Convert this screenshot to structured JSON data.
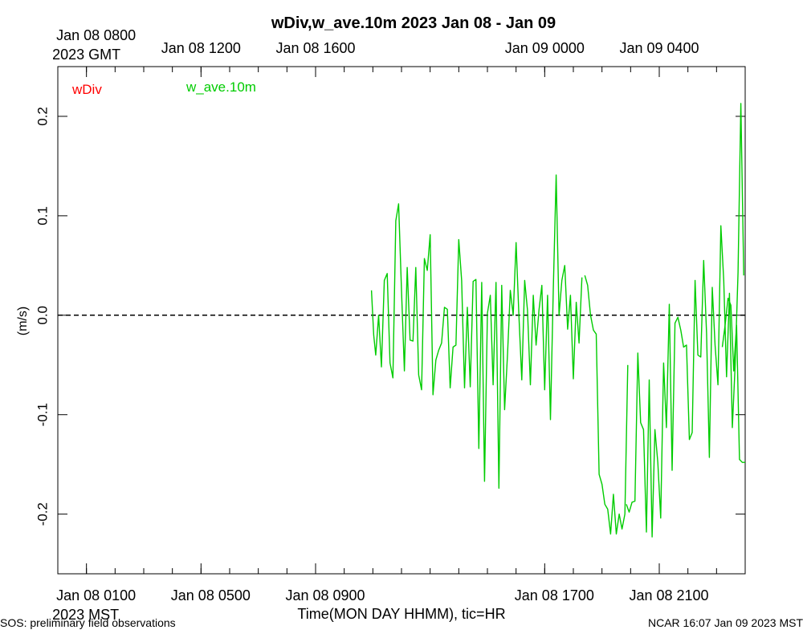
{
  "footer": {
    "left": "SOS: preliminary field observations",
    "right": "NCAR 16:07 Jan 09 2023 MST"
  },
  "colors": {
    "wDiv": "#ff0000",
    "w_ave": "#00cc00",
    "axis": "#000000"
  },
  "chart_data": {
    "type": "line",
    "title": "wDiv,w_ave.10m 2023 Jan 08 - Jan 09",
    "xlabel": "Time(MON DAY HHMM), tic=HR",
    "ylabel": "(m/s)",
    "x_unit": "hours since Jan 08 0000 MST",
    "xlim": [
      0,
      24
    ],
    "ylim": [
      -0.26,
      0.25
    ],
    "y_ticks": [
      -0.2,
      -0.1,
      0.0,
      0.1,
      0.2
    ],
    "y_tick_labels": [
      "-0.2",
      "-0.1",
      "0.0",
      "0.1",
      "0.2"
    ],
    "bottom_ticks": [
      {
        "x": 1,
        "label1": "Jan 08 0100",
        "label2": "2023 MST"
      },
      {
        "x": 5,
        "label1": "Jan 08 0500",
        "label2": ""
      },
      {
        "x": 9,
        "label1": "Jan 08 0900",
        "label2": ""
      },
      {
        "x": 17,
        "label1": "Jan 08 1700",
        "label2": ""
      },
      {
        "x": 21,
        "label1": "Jan 08 2100",
        "label2": ""
      }
    ],
    "top_ticks": [
      {
        "x": 1,
        "label1": "Jan 08 0800",
        "label2": "2023 GMT"
      },
      {
        "x": 5,
        "label1": "Jan 08 1200",
        "label2": ""
      },
      {
        "x": 9,
        "label1": "Jan 08 1600",
        "label2": ""
      },
      {
        "x": 17,
        "label1": "Jan 09 0000",
        "label2": ""
      },
      {
        "x": 21,
        "label1": "Jan 09 0400",
        "label2": ""
      }
    ],
    "series": [
      {
        "name": "wDiv",
        "color": "#ff0000",
        "style": "dashed",
        "x": [
          0,
          24
        ],
        "y": [
          0.0,
          0.0
        ]
      },
      {
        "name": "w_ave.10m",
        "color": "#00cc00",
        "style": "solid",
        "segments": [
          {
            "x": [
              10.95,
              11.03,
              11.1,
              11.2,
              11.3,
              11.4,
              11.5,
              11.6,
              11.7,
              11.8,
              11.9,
              12.0,
              12.1,
              12.2,
              12.3,
              12.4,
              12.5,
              12.6,
              12.7,
              12.8,
              12.9,
              13.0,
              13.1,
              13.2,
              13.3,
              13.4,
              13.5,
              13.6,
              13.7,
              13.8,
              13.9,
              14.0,
              14.1,
              14.2,
              14.3,
              14.4,
              14.5,
              14.6,
              14.7,
              14.8,
              14.9,
              15.0,
              15.1,
              15.2,
              15.3,
              15.4,
              15.5,
              15.6,
              15.7,
              15.8,
              15.9,
              16.0,
              16.1,
              16.2,
              16.3,
              16.4,
              16.5,
              16.6,
              16.7,
              16.8,
              16.9,
              17.0,
              17.1,
              17.2,
              17.3,
              17.4,
              17.5,
              17.6,
              17.7,
              17.8,
              17.9,
              18.0,
              18.1,
              18.2,
              18.3
            ],
            "y": [
              0.025,
              -0.02,
              -0.04,
              0.0,
              -0.052,
              0.035,
              0.042,
              -0.048,
              -0.063,
              0.095,
              0.112,
              0.025,
              -0.056,
              0.048,
              -0.025,
              -0.026,
              0.048,
              -0.06,
              -0.075,
              0.057,
              0.045,
              0.081,
              -0.08,
              -0.045,
              -0.035,
              -0.028,
              0.008,
              0.006,
              -0.073,
              -0.032,
              -0.03,
              0.076,
              0.035,
              -0.073,
              0.008,
              -0.072,
              0.034,
              0.036,
              -0.134,
              0.033,
              -0.167,
              0.002,
              0.02,
              -0.07,
              0.033,
              -0.174,
              0.03,
              -0.095,
              -0.04,
              0.025,
              0.0,
              0.073,
              0.0,
              -0.065,
              0.035,
              0.005,
              -0.07,
              0.02,
              -0.03,
              0.005,
              0.03,
              -0.075,
              0.02,
              -0.105,
              0.025,
              0.141,
              0.0,
              0.035,
              0.05,
              -0.014,
              0.02,
              -0.064,
              0.013,
              -0.028,
              0.038
            ]
          },
          {
            "x": [
              18.4,
              18.5,
              18.6,
              18.7,
              18.8,
              18.9,
              19.0,
              19.1,
              19.2,
              19.3,
              19.4,
              19.5,
              19.6,
              19.7,
              19.8,
              19.9
            ],
            "y": [
              0.04,
              0.03,
              0.0,
              -0.015,
              -0.019,
              -0.16,
              -0.17,
              -0.19,
              -0.195,
              -0.22,
              -0.18,
              -0.22,
              -0.2,
              -0.215,
              -0.2,
              -0.05
            ]
          },
          {
            "x": [
              19.85,
              19.95,
              20.05,
              20.15,
              20.25,
              20.35,
              20.45,
              20.55,
              20.65,
              20.75,
              20.85,
              20.95,
              21.05,
              21.15,
              21.25,
              21.35,
              21.45,
              21.55,
              21.65,
              21.75,
              21.85,
              21.95,
              22.05,
              22.15,
              22.25,
              22.35,
              22.45,
              22.55,
              22.65,
              22.75,
              22.85,
              22.95,
              23.05,
              23.15,
              23.25,
              23.35,
              23.45,
              23.55,
              23.65,
              23.75,
              23.85,
              23.95
            ],
            "y": [
              -0.19,
              -0.198,
              -0.188,
              -0.187,
              -0.038,
              -0.108,
              -0.115,
              -0.218,
              -0.065,
              -0.223,
              -0.115,
              -0.148,
              -0.204,
              -0.048,
              -0.113,
              0.011,
              -0.156,
              -0.008,
              -0.002,
              -0.015,
              -0.032,
              -0.03,
              -0.125,
              -0.118,
              0.035,
              -0.04,
              -0.042,
              0.055,
              -0.018,
              -0.143,
              0.028,
              -0.03,
              -0.07,
              0.09,
              0.035,
              -0.062,
              0.022,
              -0.113,
              -0.05,
              0.043,
              0.213,
              0.04
            ]
          },
          {
            "x": [
              23.2,
              23.3,
              23.4,
              23.5,
              23.6,
              23.7,
              23.8,
              23.9,
              24.0
            ],
            "y": [
              -0.032,
              -0.01,
              0.017,
              0.01,
              -0.056,
              -0.01,
              -0.145,
              -0.148,
              -0.148
            ]
          }
        ]
      }
    ]
  }
}
